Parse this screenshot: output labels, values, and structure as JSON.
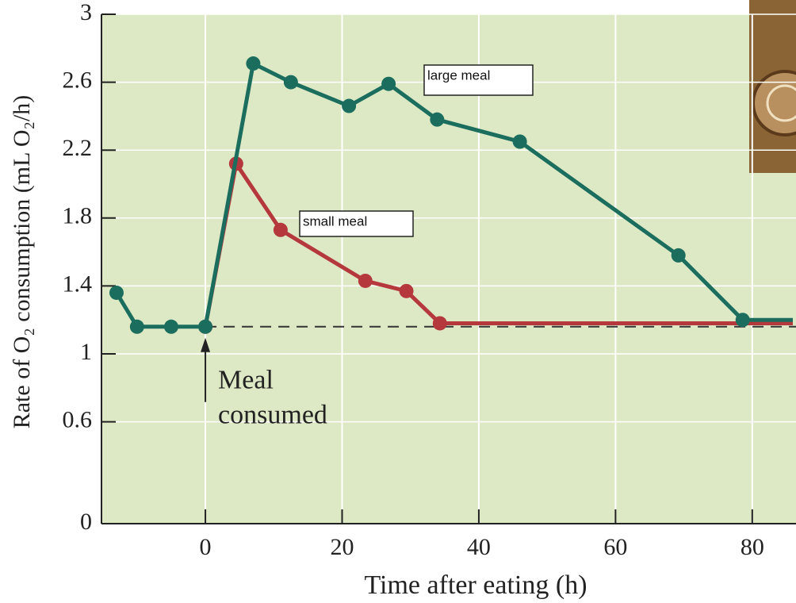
{
  "chart_data": {
    "type": "line",
    "x_label": "Time after eating (h)",
    "y_label": "Rate of O₂ consumption (mL O₂/h)",
    "xlim": [
      -15.2,
      86.4
    ],
    "xticks": [
      0,
      20,
      40,
      60,
      80
    ],
    "ylim": [
      0,
      3.0
    ],
    "yticks": [
      0,
      0.6,
      1.0,
      1.4,
      1.8,
      2.2,
      2.6,
      3.0
    ],
    "grid": true,
    "baseline": 1.16,
    "annotation": [
      "Meal",
      "consumed"
    ],
    "series": [
      {
        "name": "large meal",
        "color": "#1b6e5e",
        "x": [
          -13,
          -10,
          -5,
          0,
          7,
          12.5,
          21,
          26.8,
          33.9,
          46,
          69.2,
          78.6
        ],
        "values": [
          1.36,
          1.16,
          1.16,
          1.16,
          2.71,
          2.6,
          2.46,
          2.59,
          2.38,
          2.25,
          1.58,
          1.2
        ]
      },
      {
        "name": "small meal",
        "color": "#b5393c",
        "x": [
          0,
          4.5,
          11,
          23.4,
          29.4,
          34.3
        ],
        "values": [
          1.16,
          2.12,
          1.73,
          1.43,
          1.37,
          1.18
        ]
      }
    ]
  }
}
